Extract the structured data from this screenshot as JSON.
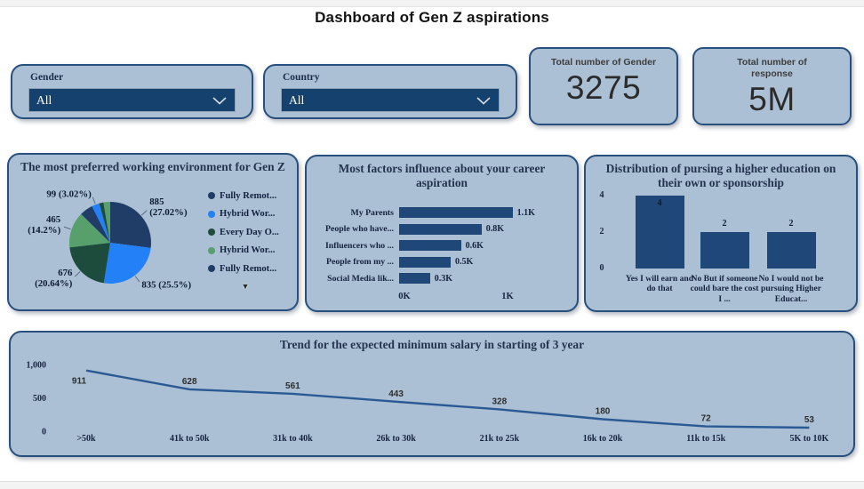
{
  "page": {
    "title": "Dashboard of Gen Z aspirations"
  },
  "filters": [
    {
      "label": "Gender",
      "value": "All"
    },
    {
      "label": "Country",
      "value": "All"
    }
  ],
  "kpis": [
    {
      "title": "Total number of Gender",
      "value": "3275"
    },
    {
      "title": "Total number of response",
      "value": "5M"
    }
  ],
  "theme": {
    "card_bg": "#ABC0D4",
    "card_border": "#27507E",
    "select_bg": "#15416F",
    "navy": "#1F3D66",
    "bright_blue": "#2380F7",
    "dark_green": "#1D4B3C",
    "light_green": "#57A06C",
    "bar_navy": "#1F4778",
    "line_blue": "#2A5A94"
  },
  "chart_data": [
    {
      "type": "pie",
      "title": "The most preferred working environment for Gen Z",
      "legend_position": "right",
      "slices": [
        {
          "name": "Fully Remot...",
          "value": 885,
          "pct": "27.02%",
          "callout": [
            "885",
            "(27.02%)"
          ],
          "color": "#1F3D66",
          "estimated": false
        },
        {
          "name": "Hybrid Wor...",
          "value": 835,
          "pct": "25.5%",
          "callout": [
            "835 (25.5%)"
          ],
          "color": "#2380F7",
          "estimated": false
        },
        {
          "name": "Every Day O...",
          "value": 676,
          "pct": "20.64%",
          "callout": [
            "676",
            "(20.64%)"
          ],
          "color": "#1D4B3C",
          "estimated": false
        },
        {
          "name": "Hybrid Wor...",
          "value": 465,
          "pct": "14.2%",
          "callout": [
            "465",
            "(14.2%)"
          ],
          "color": "#57A06C",
          "estimated": false
        },
        {
          "name": "Fully Remot...",
          "value": 173,
          "pct": "",
          "callout": null,
          "color": "#1F3D66",
          "estimated": true
        },
        {
          "name": "",
          "value": 99,
          "pct": "3.02%",
          "callout": [
            "99 (3.02%)"
          ],
          "color": "#2380F7",
          "estimated": false
        },
        {
          "name": "",
          "value": 55,
          "pct": "",
          "callout": null,
          "color": "#1D4B3C",
          "estimated": true
        },
        {
          "name": "",
          "value": 87,
          "pct": "",
          "callout": null,
          "color": "#57A06C",
          "estimated": true
        }
      ],
      "legend": [
        {
          "label": "Fully Remot...",
          "color": "#1F3D66"
        },
        {
          "label": "Hybrid Wor...",
          "color": "#2380F7"
        },
        {
          "label": "Every Day O...",
          "color": "#1D4B3C"
        },
        {
          "label": "Hybrid Wor...",
          "color": "#57A06C"
        },
        {
          "label": "Fully Remot...",
          "color": "#1F3D66"
        }
      ]
    },
    {
      "type": "bar",
      "orientation": "horizontal",
      "title": "Most factors influence about your career aspiration",
      "categories": [
        "My Parents",
        "People who have...",
        "Influencers who ...",
        "People from my ...",
        "Social Media lik..."
      ],
      "values": [
        1100,
        800,
        600,
        500,
        300
      ],
      "value_labels": [
        "1.1K",
        "0.8K",
        "0.6K",
        "0.5K",
        "0.3K"
      ],
      "x_ticks": [
        {
          "label": "0K",
          "v": 0
        },
        {
          "label": "1K",
          "v": 1000
        }
      ],
      "xlim": [
        0,
        1250
      ],
      "bar_color": "#1F4778"
    },
    {
      "type": "bar",
      "orientation": "vertical",
      "title": "Distribution of pursing a higher education on their own or sponsorship",
      "categories": [
        "Yes I will earn and do that",
        "No But if someone could bare the cost I ...",
        "No I would not be pursuing Higher Educat..."
      ],
      "values": [
        4,
        2,
        2
      ],
      "y_ticks": [
        {
          "label": "0",
          "v": 0
        },
        {
          "label": "2",
          "v": 2
        },
        {
          "label": "4",
          "v": 4
        }
      ],
      "ylim": [
        0,
        4
      ],
      "bar_color": "#1F4778"
    },
    {
      "type": "line",
      "title": "Trend for the expected minimum salary in starting of 3 year",
      "categories": [
        ">50k",
        "41k to 50k",
        "31k to 40k",
        "26k to 30k",
        "21k to 25k",
        "16k to 20k",
        "11k to 15k",
        "5K to 10K"
      ],
      "values": [
        911,
        628,
        561,
        443,
        328,
        180,
        72,
        53
      ],
      "y_ticks": [
        {
          "label": "0",
          "v": 0
        },
        {
          "label": "500",
          "v": 500
        },
        {
          "label": "1,000",
          "v": 1000
        }
      ],
      "ylim": [
        0,
        1000
      ],
      "grid": false,
      "line_color": "#2A5A94"
    }
  ]
}
